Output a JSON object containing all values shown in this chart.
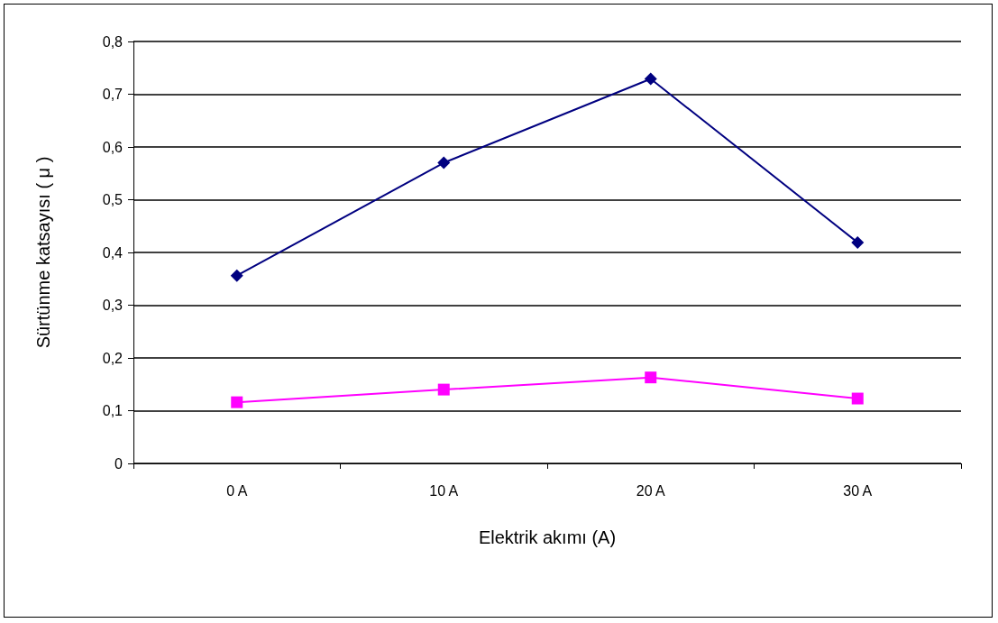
{
  "chart_data": {
    "type": "line",
    "xlabel": "Elektrik akımı (A)",
    "ylabel": "Sürtünme katsayısı ( μ )",
    "categories": [
      "0 A",
      "10 A",
      "20 A",
      "30 A"
    ],
    "series": [
      {
        "color": "#000080",
        "marker": "diamond",
        "values": [
          0.356,
          0.57,
          0.729,
          0.419
        ]
      },
      {
        "color": "#ff00ff",
        "marker": "square",
        "values": [
          0.116,
          0.14,
          0.163,
          0.123
        ]
      }
    ],
    "ylim": [
      0,
      0.8
    ],
    "yticks": [
      0,
      {
        "value": 0.1,
        "label": "0,1"
      },
      {
        "value": 0.2,
        "label": "0,2"
      },
      {
        "value": 0.3,
        "label": "0,3"
      },
      {
        "value": 0.4,
        "label": "0,4"
      },
      {
        "value": 0.5,
        "label": "0,5"
      },
      {
        "value": 0.6,
        "label": "0,6"
      },
      {
        "value": 0.7,
        "label": "0,7"
      },
      {
        "value": 0.8,
        "label": "0,8"
      }
    ],
    "grid": "y",
    "line_style": "solid"
  }
}
